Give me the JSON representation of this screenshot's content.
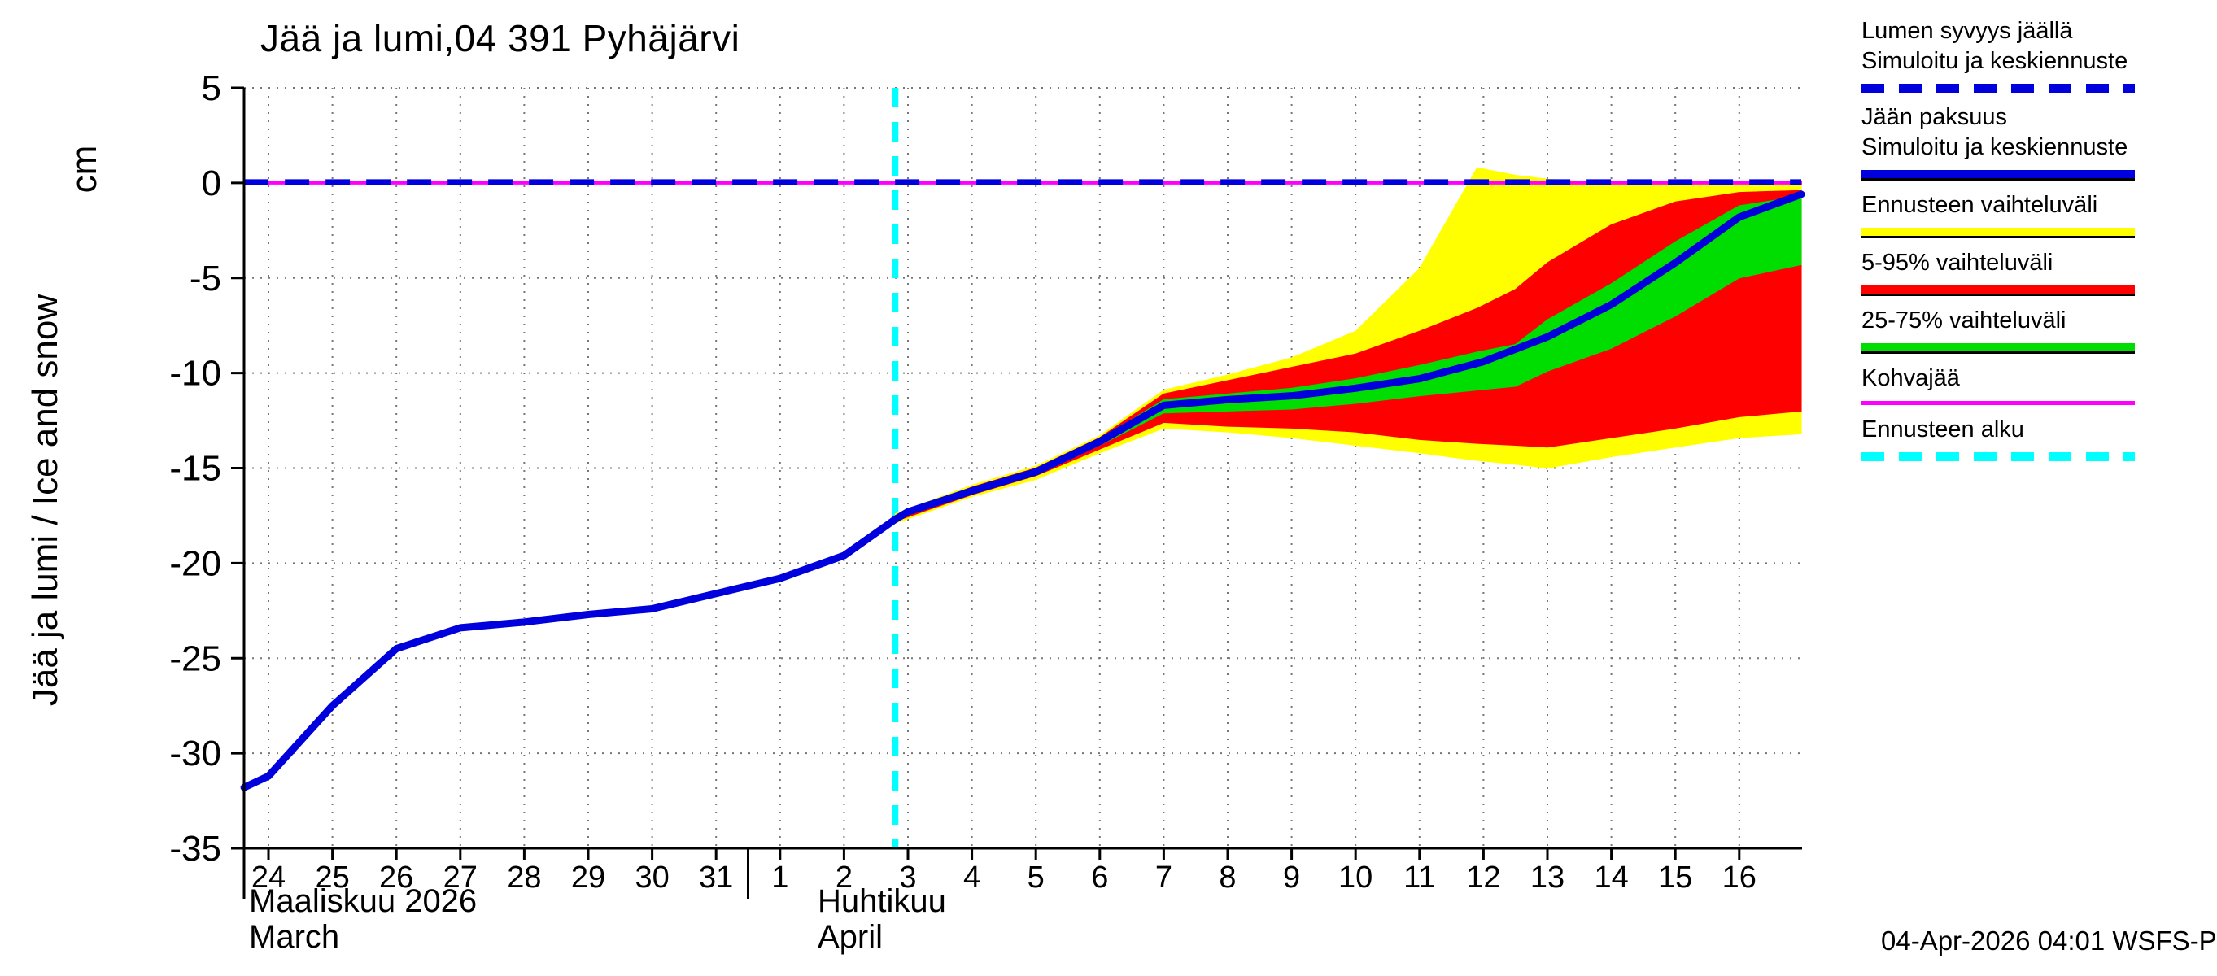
{
  "page": {
    "title": "Jää ja lumi,04 391 Pyhäjärvi",
    "footer_timestamp": "04-Apr-2026 04:01 WSFS-P"
  },
  "y_axis": {
    "label": "Jää ja lumi / Ice and snow",
    "unit": "cm"
  },
  "x_axis": {
    "month1_fi": "Maaliskuu 2026",
    "month1_en": "March",
    "month2_fi": "Huhtikuu",
    "month2_en": "April"
  },
  "legend": {
    "items": [
      {
        "name": "snow-depth-on-ice",
        "line1": "Lumen syvyys jäällä",
        "line2": "Simuloitu ja keskiennuste",
        "color": "#0000dd",
        "pattern": "dashed",
        "thickness": 11,
        "underline": false
      },
      {
        "name": "ice-thickness",
        "line1": "Jään paksuus",
        "line2": "Simuloitu ja keskiennuste",
        "color": "#0000dd",
        "pattern": "solid",
        "thickness": 13,
        "underline": true
      },
      {
        "name": "forecast-range",
        "line1": "Ennusteen vaihteluväli",
        "line2": "",
        "color": "#ffff00",
        "pattern": "solid",
        "thickness": 13,
        "underline": true
      },
      {
        "name": "range-5-95",
        "line1": "5-95% vaihteluväli",
        "line2": "",
        "color": "#ff0000",
        "pattern": "solid",
        "thickness": 13,
        "underline": true
      },
      {
        "name": "range-25-75",
        "line1": "25-75% vaihteluväli",
        "line2": "",
        "color": "#00dd00",
        "pattern": "solid",
        "thickness": 13,
        "underline": true
      },
      {
        "name": "frazil-ice",
        "line1": "Kohvajää",
        "line2": "",
        "color": "#ff00ff",
        "pattern": "solid",
        "thickness": 5,
        "underline": false
      },
      {
        "name": "forecast-start",
        "line1": "Ennusteen alku",
        "line2": "",
        "color": "#00ffff",
        "pattern": "dashed",
        "thickness": 11,
        "underline": false
      }
    ]
  },
  "chart_data": {
    "type": "line",
    "title": "Jää ja lumi,04 391 Pyhäjärvi",
    "ylabel": "Jää ja lumi / Ice and snow (cm)",
    "ylim": [
      -35,
      5
    ],
    "y_ticks": [
      5,
      0,
      -5,
      -10,
      -15,
      -20,
      -25,
      -30,
      -35
    ],
    "x_days": [
      "24",
      "25",
      "26",
      "27",
      "28",
      "29",
      "30",
      "31",
      "1",
      "2",
      "3",
      "4",
      "5",
      "6",
      "7",
      "8",
      "9",
      "10",
      "11",
      "12",
      "13",
      "14",
      "15",
      "16"
    ],
    "month_boundary_after_index": 7,
    "forecast_start_x": 9.8,
    "grid": true,
    "legend_position": "right",
    "colors": {
      "blue": "#0000dd",
      "yellow": "#ffff00",
      "red": "#ff0000",
      "green": "#00dd00",
      "magenta": "#ff00ff",
      "cyan": "#00ffff",
      "grid": "#777777"
    },
    "series": [
      {
        "name": "Jään paksuus — Simuloitu ja keskiennuste",
        "color": "#0000dd",
        "style": "solid",
        "width": 9,
        "x": [
          -0.38,
          0,
          1,
          2,
          3,
          4,
          5,
          6,
          7,
          8,
          9,
          9.8,
          10,
          11,
          12,
          13,
          14,
          15,
          16,
          17,
          18,
          19,
          20,
          21,
          22,
          23,
          23.97
        ],
        "values": [
          -31.8,
          -31.2,
          -27.5,
          -24.5,
          -23.4,
          -23.1,
          -22.7,
          -22.4,
          -21.6,
          -20.8,
          -19.6,
          -17.7,
          -17.3,
          -16.2,
          -15.2,
          -13.6,
          -11.7,
          -11.4,
          -11.2,
          -10.8,
          -10.3,
          -9.4,
          -8.1,
          -6.4,
          -4.2,
          -1.8,
          -0.6
        ]
      },
      {
        "name": "Lumen syvyys jäällä — Simuloitu ja keskiennuste",
        "color": "#0000dd",
        "style": "dashed",
        "width": 7,
        "x": [
          -0.38,
          23.97
        ],
        "values": [
          0,
          0
        ]
      }
    ],
    "bands": [
      {
        "name": "Ennusteen vaihteluväli",
        "color": "#ffff00",
        "x": [
          9.8,
          11,
          12,
          13,
          14,
          15,
          16,
          17,
          18,
          18.9,
          19.5,
          20,
          21,
          22,
          23,
          23.97
        ],
        "upper": [
          -17.4,
          -15.9,
          -14.9,
          -13.3,
          -10.9,
          -10.1,
          -9.2,
          -7.8,
          -4.5,
          0.8,
          0.4,
          0.2,
          0.0,
          -0.1,
          -0.1,
          -0.1
        ],
        "lower": [
          -17.9,
          -16.5,
          -15.6,
          -14.2,
          -12.9,
          -13.1,
          -13.4,
          -13.8,
          -14.2,
          -14.6,
          -14.8,
          -15.0,
          -14.4,
          -13.9,
          -13.4,
          -13.2
        ]
      },
      {
        "name": "5-95% vaihteluväli",
        "color": "#ff0000",
        "x": [
          9.8,
          11,
          12,
          13,
          14,
          15,
          16,
          17,
          18,
          18.9,
          19.5,
          20,
          21,
          22,
          23,
          23.97
        ],
        "upper": [
          -17.5,
          -16.0,
          -15.0,
          -13.4,
          -11.1,
          -10.4,
          -9.7,
          -9.0,
          -7.8,
          -6.6,
          -5.6,
          -4.2,
          -2.2,
          -1.0,
          -0.5,
          -0.4
        ],
        "lower": [
          -17.8,
          -16.4,
          -15.4,
          -14.0,
          -12.6,
          -12.8,
          -12.9,
          -13.1,
          -13.5,
          -13.7,
          -13.8,
          -13.9,
          -13.4,
          -12.9,
          -12.3,
          -12.0
        ]
      },
      {
        "name": "25-75% vaihteluväli",
        "color": "#00dd00",
        "x": [
          9.8,
          11,
          12,
          13,
          14,
          15,
          16,
          17,
          18,
          18.9,
          19.5,
          20,
          21,
          22,
          23,
          23.97
        ],
        "upper": [
          -17.55,
          -16.1,
          -15.1,
          -13.5,
          -11.4,
          -11.1,
          -10.8,
          -10.3,
          -9.6,
          -8.9,
          -8.5,
          -7.2,
          -5.3,
          -3.1,
          -1.2,
          -0.7
        ],
        "lower": [
          -17.7,
          -16.3,
          -15.3,
          -13.8,
          -12.1,
          -12.0,
          -11.9,
          -11.6,
          -11.2,
          -10.9,
          -10.7,
          -9.9,
          -8.7,
          -7.0,
          -5.0,
          -4.3
        ]
      }
    ],
    "reference_lines": [
      {
        "name": "Kohvajää",
        "value": 0,
        "color": "#ff00ff",
        "style": "solid",
        "width": 4
      }
    ]
  }
}
